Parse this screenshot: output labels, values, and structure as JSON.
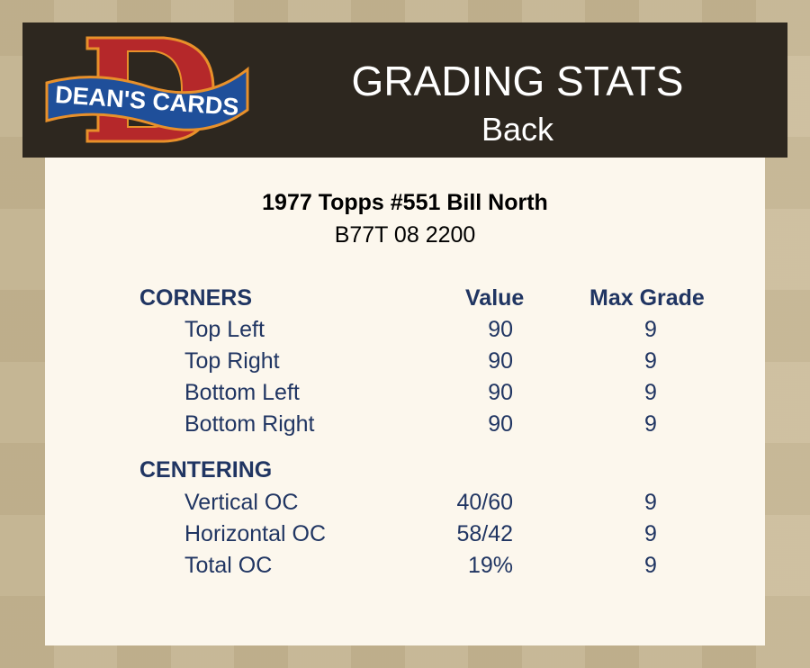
{
  "header": {
    "logo_text": "DEAN'S CARDS",
    "title": "GRADING STATS",
    "subtitle": "Back"
  },
  "card": {
    "title": "1977 Topps #551 Bill North",
    "code": "B77T 08 2200"
  },
  "columns": {
    "value": "Value",
    "max_grade": "Max Grade"
  },
  "sections": [
    {
      "heading": "CORNERS",
      "rows": [
        {
          "label": "Top Left",
          "value": "90",
          "max_grade": "9"
        },
        {
          "label": "Top Right",
          "value": "90",
          "max_grade": "9"
        },
        {
          "label": "Bottom Left",
          "value": "90",
          "max_grade": "9"
        },
        {
          "label": "Bottom Right",
          "value": "90",
          "max_grade": "9"
        }
      ]
    },
    {
      "heading": "CENTERING",
      "rows": [
        {
          "label": "Vertical OC",
          "value": "40/60",
          "max_grade": "9"
        },
        {
          "label": "Horizontal OC",
          "value": "58/42",
          "max_grade": "9"
        },
        {
          "label": "Total OC",
          "value": "19%",
          "max_grade": "9"
        }
      ]
    }
  ],
  "colors": {
    "header_bg": "#2d271f",
    "panel_bg": "#fcf7ed",
    "text_navy": "#203562",
    "logo_red": "#b5282a",
    "logo_blue": "#1f4f9a"
  }
}
